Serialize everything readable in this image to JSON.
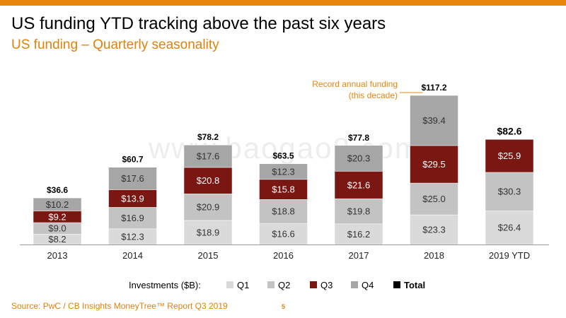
{
  "header": {
    "title": "US funding YTD tracking above the past six years",
    "subtitle": "US funding – Quarterly seasonality"
  },
  "watermark": "www.baogao8.com",
  "colors": {
    "accent": "#e8850d",
    "q1": "#dadada",
    "q2": "#c3c3c3",
    "q3": "#7b1712",
    "q4": "#a6a6a6",
    "total": "#000000"
  },
  "chart_data": {
    "type": "bar",
    "stacked": true,
    "categories": [
      "2013",
      "2014",
      "2015",
      "2016",
      "2017",
      "2018",
      "2019 YTD"
    ],
    "series": [
      {
        "name": "Q1",
        "values": [
          8.2,
          12.3,
          18.9,
          16.6,
          16.2,
          23.3,
          26.4
        ],
        "labels": [
          "$8.2",
          "$12.3",
          "$18.9",
          "$16.6",
          "$16.2",
          "$23.3",
          "$26.4"
        ]
      },
      {
        "name": "Q2",
        "values": [
          9.0,
          16.9,
          20.9,
          18.8,
          19.8,
          25.0,
          30.3
        ],
        "labels": [
          "$9.0",
          "$16.9",
          "$20.9",
          "$18.8",
          "$19.8",
          "$25.0",
          "$30.3"
        ]
      },
      {
        "name": "Q3",
        "values": [
          9.2,
          13.9,
          20.8,
          15.8,
          21.6,
          29.5,
          25.9
        ],
        "labels": [
          "$9.2",
          "$13.9",
          "$20.8",
          "$15.8",
          "$21.6",
          "$29.5",
          "$25.9"
        ]
      },
      {
        "name": "Q4",
        "values": [
          10.2,
          17.6,
          17.6,
          12.3,
          20.3,
          39.4,
          null
        ],
        "labels": [
          "$10.2",
          "$17.6",
          "$17.6",
          "$12.3",
          "$20.3",
          "$39.4",
          ""
        ]
      }
    ],
    "totals": [
      36.6,
      60.7,
      78.2,
      63.5,
      77.8,
      117.2,
      82.6
    ],
    "total_labels": [
      "$36.6",
      "$60.7",
      "$78.2",
      "$63.5",
      "$77.8",
      "$117.2",
      "$82.6"
    ],
    "annotation": {
      "category": "2018",
      "line1": "Record annual funding",
      "line2": "(this decade)"
    },
    "ylim": [
      0,
      125
    ],
    "xlabel": "",
    "ylabel": "",
    "legend": {
      "title": "Investments ($B):",
      "items": [
        "Q1",
        "Q2",
        "Q3",
        "Q4",
        "Total"
      ],
      "placement": "bottom"
    }
  },
  "footer": {
    "source": "Source: PwC / CB Insights MoneyTree™ Report Q3 2019",
    "page": "5"
  }
}
